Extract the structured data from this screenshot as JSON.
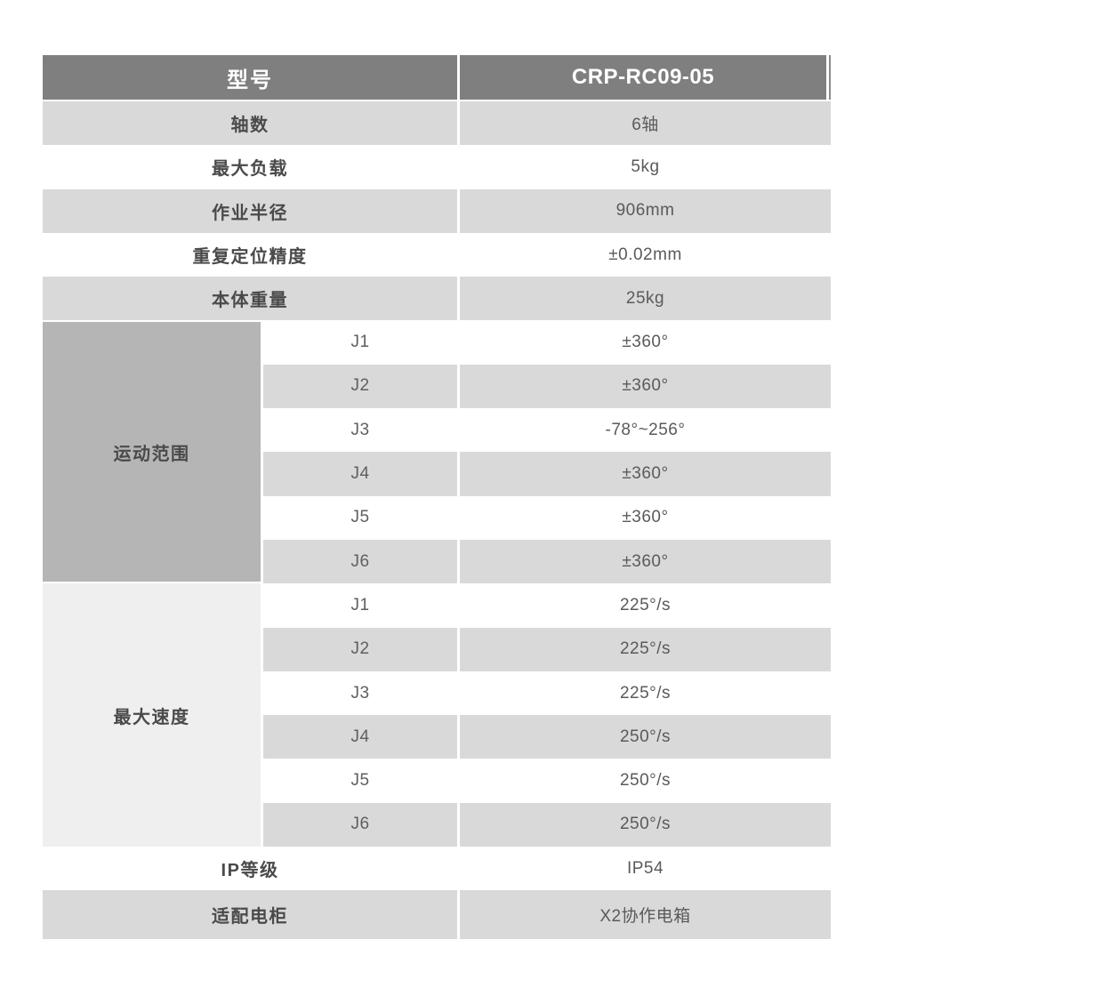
{
  "colors": {
    "header-bg": "#7f7f7f",
    "header-text": "#ffffff",
    "row-gray": "#d9d9d9",
    "row-white": "#ffffff",
    "group-dark": "#b5b5b5",
    "group-light": "#efefef",
    "label-text": "#4a4a4a",
    "value-text": "#5a5a5a"
  },
  "table": {
    "header": {
      "label": "型号",
      "value": "CRP-RC09-05"
    },
    "rows_top": [
      {
        "label": "轴数",
        "value": "6轴"
      },
      {
        "label": "最大负载",
        "value": "5kg"
      },
      {
        "label": "作业半径",
        "value": "906mm"
      },
      {
        "label": "重复定位精度",
        "value": "±0.02mm"
      },
      {
        "label": "本体重量",
        "value": "25kg"
      }
    ],
    "groups": [
      {
        "label": "运动范围",
        "rows": [
          {
            "axis": "J1",
            "value": "±360°"
          },
          {
            "axis": "J2",
            "value": "±360°"
          },
          {
            "axis": "J3",
            "value": "-78°~256°"
          },
          {
            "axis": "J4",
            "value": "±360°"
          },
          {
            "axis": "J5",
            "value": "±360°"
          },
          {
            "axis": "J6",
            "value": "±360°"
          }
        ]
      },
      {
        "label": "最大速度",
        "rows": [
          {
            "axis": "J1",
            "value": "225°/s"
          },
          {
            "axis": "J2",
            "value": "225°/s"
          },
          {
            "axis": "J3",
            "value": "225°/s"
          },
          {
            "axis": "J4",
            "value": "250°/s"
          },
          {
            "axis": "J5",
            "value": "250°/s"
          },
          {
            "axis": "J6",
            "value": "250°/s"
          }
        ]
      }
    ],
    "rows_bottom": [
      {
        "label": "IP等级",
        "value": "IP54"
      },
      {
        "label": "适配电柜",
        "value": "X2协作电箱"
      }
    ]
  }
}
